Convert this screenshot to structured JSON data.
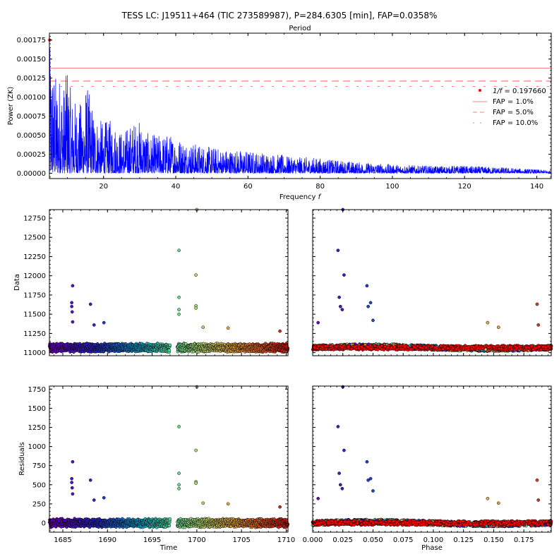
{
  "figure": {
    "title": "TESS LC: J19511+464 (TIC 273589987), P=284.6305 [min], FAP=0.0358%"
  },
  "colors": {
    "periodogram_line": "#0000ff",
    "peak_marker": "#ff0000",
    "fap_lines": "#ff0000",
    "phase_overlay": "#ff0000"
  },
  "chart_data": [
    {
      "id": "periodogram",
      "type": "line",
      "title": "Period",
      "xlabel": "Frequency $f$",
      "ylabel": "Power (ZK)",
      "xlim": [
        5,
        144
      ],
      "ylim": [
        -7e-05,
        0.00184
      ],
      "x_ticks": [
        20,
        40,
        60,
        80,
        100,
        120,
        140
      ],
      "y_ticks": [
        0.0,
        0.00025,
        0.0005,
        0.00075,
        0.001,
        0.00125,
        0.0015,
        0.00175
      ],
      "y_tick_labels": [
        "0.00000",
        "0.00025",
        "0.00050",
        "0.00075",
        "0.00100",
        "0.00125",
        "0.00150",
        "0.00175"
      ],
      "series": [
        {
          "peaks": [
            {
              "x": 5.06,
              "y": 0.00175
            },
            {
              "x": 5.6,
              "y": 0.0016
            },
            {
              "x": 6.2,
              "y": 0.0014
            },
            {
              "x": 7.0,
              "y": 0.00128
            },
            {
              "x": 8.0,
              "y": 0.00135
            },
            {
              "x": 9.0,
              "y": 0.0012
            },
            {
              "x": 10.0,
              "y": 0.0015
            },
            {
              "x": 11.3,
              "y": 0.00102
            },
            {
              "x": 12.6,
              "y": 0.00095
            },
            {
              "x": 14.2,
              "y": 0.00093
            },
            {
              "x": 15.2,
              "y": 0.00122
            },
            {
              "x": 17.5,
              "y": 0.0008
            },
            {
              "x": 19.8,
              "y": 0.00068
            },
            {
              "x": 22.0,
              "y": 0.00072
            },
            {
              "x": 25.0,
              "y": 0.00055
            },
            {
              "x": 29.5,
              "y": 0.00072
            },
            {
              "x": 33.0,
              "y": 0.0005
            },
            {
              "x": 38.0,
              "y": 0.00052
            },
            {
              "x": 45.0,
              "y": 0.0004
            },
            {
              "x": 52.0,
              "y": 0.00033
            },
            {
              "x": 60.0,
              "y": 0.0003
            },
            {
              "x": 70.0,
              "y": 0.00024
            },
            {
              "x": 80.0,
              "y": 0.0002
            },
            {
              "x": 90.0,
              "y": 0.00015
            },
            {
              "x": 100.0,
              "y": 0.00012
            },
            {
              "x": 110.0,
              "y": 0.0001
            },
            {
              "x": 120.0,
              "y": 0.0001
            },
            {
              "x": 130.0,
              "y": 8e-05
            },
            {
              "x": 144.0,
              "y": 4e-05
            }
          ]
        }
      ],
      "peak_point": {
        "x": 5.06,
        "y": 0.00175
      },
      "fap_lines": [
        {
          "level": 0.00138,
          "style": "solid"
        },
        {
          "level": 0.00121,
          "style": "dashed"
        },
        {
          "level": 0.00114,
          "style": "dotted"
        }
      ],
      "legend": {
        "placement": "center-right",
        "entries": [
          "$1/f = 0.197660$",
          "FAP = 1.0%",
          "FAP = 5.0%",
          "FAP = 10.0%"
        ]
      }
    },
    {
      "id": "data_time",
      "type": "scatter",
      "xlabel": "",
      "ylabel": "Data",
      "xlim": [
        1683.5,
        1710.2
      ],
      "ylim": [
        10960,
        12860
      ],
      "x_ticks": [
        1685,
        1690,
        1695,
        1700,
        1705,
        1710
      ],
      "y_ticks": [
        11000,
        11250,
        11500,
        11750,
        12000,
        12250,
        12500,
        12750
      ],
      "baseline": 11065,
      "amplitude": 55,
      "outliers": [
        {
          "x": 1686.1,
          "y": 11870
        },
        {
          "x": 1686.0,
          "y": 11650
        },
        {
          "x": 1686.0,
          "y": 11600
        },
        {
          "x": 1686.05,
          "y": 11530
        },
        {
          "x": 1686.1,
          "y": 11400
        },
        {
          "x": 1688.1,
          "y": 11630
        },
        {
          "x": 1688.5,
          "y": 11360
        },
        {
          "x": 1689.6,
          "y": 11390
        },
        {
          "x": 1698.0,
          "y": 12330
        },
        {
          "x": 1698.0,
          "y": 11720
        },
        {
          "x": 1698.0,
          "y": 11560
        },
        {
          "x": 1698.0,
          "y": 11500
        },
        {
          "x": 1699.9,
          "y": 12010
        },
        {
          "x": 1699.9,
          "y": 11610
        },
        {
          "x": 1699.9,
          "y": 11580
        },
        {
          "x": 1700.0,
          "y": 12860
        },
        {
          "x": 1700.7,
          "y": 11330
        },
        {
          "x": 1703.5,
          "y": 11320
        },
        {
          "x": 1709.3,
          "y": 11280
        }
      ]
    },
    {
      "id": "data_phase",
      "type": "scatter",
      "xlabel": "",
      "ylabel": "",
      "xlim": [
        0.0,
        0.1977
      ],
      "ylim": [
        10960,
        12860
      ],
      "baseline": 11065,
      "outliers": [
        {
          "x": 0.0045,
          "y": 11390
        },
        {
          "x": 0.021,
          "y": 12330
        },
        {
          "x": 0.022,
          "y": 11720
        },
        {
          "x": 0.023,
          "y": 11600
        },
        {
          "x": 0.0245,
          "y": 11560
        },
        {
          "x": 0.025,
          "y": 12860
        },
        {
          "x": 0.026,
          "y": 12010
        },
        {
          "x": 0.045,
          "y": 11870
        },
        {
          "x": 0.046,
          "y": 11600
        },
        {
          "x": 0.048,
          "y": 11650
        },
        {
          "x": 0.05,
          "y": 11420
        },
        {
          "x": 0.145,
          "y": 11390
        },
        {
          "x": 0.154,
          "y": 11330
        },
        {
          "x": 0.186,
          "y": 11630
        },
        {
          "x": 0.187,
          "y": 11360
        }
      ]
    },
    {
      "id": "residuals_time",
      "type": "scatter",
      "xlabel": "Time",
      "ylabel": "Residuals",
      "xlim": [
        1683.5,
        1710.2
      ],
      "ylim": [
        -120,
        1790
      ],
      "x_ticks": [
        1685,
        1690,
        1695,
        1700,
        1705,
        1710
      ],
      "y_ticks": [
        0,
        250,
        500,
        750,
        1000,
        1250,
        1500,
        1750
      ],
      "baseline": 0,
      "amplitude": 55,
      "outliers": [
        {
          "x": 1686.1,
          "y": 800
        },
        {
          "x": 1686.0,
          "y": 580
        },
        {
          "x": 1686.0,
          "y": 530
        },
        {
          "x": 1686.05,
          "y": 460
        },
        {
          "x": 1686.1,
          "y": 380
        },
        {
          "x": 1688.1,
          "y": 560
        },
        {
          "x": 1688.5,
          "y": 300
        },
        {
          "x": 1689.6,
          "y": 330
        },
        {
          "x": 1698.0,
          "y": 1260
        },
        {
          "x": 1698.0,
          "y": 650
        },
        {
          "x": 1698.0,
          "y": 500
        },
        {
          "x": 1698.0,
          "y": 450
        },
        {
          "x": 1699.9,
          "y": 950
        },
        {
          "x": 1699.9,
          "y": 540
        },
        {
          "x": 1699.9,
          "y": 520
        },
        {
          "x": 1700.0,
          "y": 1780
        },
        {
          "x": 1700.7,
          "y": 260
        },
        {
          "x": 1703.5,
          "y": 250
        },
        {
          "x": 1709.3,
          "y": 210
        }
      ]
    },
    {
      "id": "residuals_phase",
      "type": "scatter",
      "xlabel": "Phase",
      "ylabel": "",
      "xlim": [
        0.0,
        0.1977
      ],
      "ylim": [
        -120,
        1790
      ],
      "x_ticks": [
        0.0,
        0.025,
        0.05,
        0.075,
        0.1,
        0.125,
        0.15,
        0.175
      ],
      "x_tick_labels": [
        "0.000",
        "0.025",
        "0.050",
        "0.075",
        "0.100",
        "0.125",
        "0.150",
        "0.175"
      ],
      "baseline": 0,
      "outliers": [
        {
          "x": 0.0045,
          "y": 320
        },
        {
          "x": 0.021,
          "y": 1260
        },
        {
          "x": 0.022,
          "y": 650
        },
        {
          "x": 0.023,
          "y": 500
        },
        {
          "x": 0.0245,
          "y": 450
        },
        {
          "x": 0.025,
          "y": 1780
        },
        {
          "x": 0.026,
          "y": 950
        },
        {
          "x": 0.045,
          "y": 800
        },
        {
          "x": 0.046,
          "y": 560
        },
        {
          "x": 0.048,
          "y": 580
        },
        {
          "x": 0.05,
          "y": 420
        },
        {
          "x": 0.145,
          "y": 320
        },
        {
          "x": 0.154,
          "y": 260
        },
        {
          "x": 0.186,
          "y": 560
        },
        {
          "x": 0.187,
          "y": 300
        }
      ]
    }
  ]
}
